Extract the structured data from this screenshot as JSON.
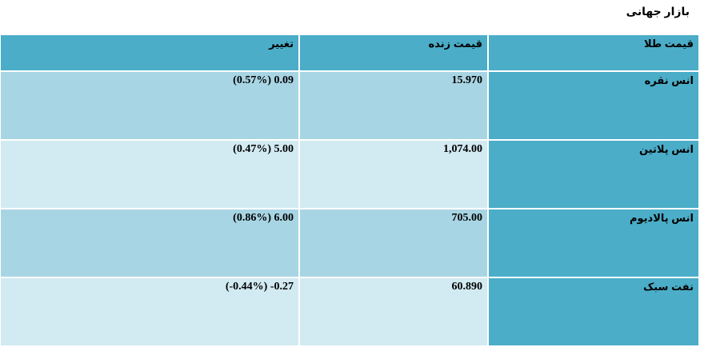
{
  "title": "بازار جهانی",
  "headers": {
    "change": "تغییر",
    "live_price": "قیمت زنده",
    "gold_price": "قیمت طلا"
  },
  "rows": [
    {
      "name": "انس نقره",
      "price": "15.970",
      "change": "(0.57%) 0.09"
    },
    {
      "name": "انس پلاتین",
      "price": "1,074.00",
      "change": "(0.47%) 5.00"
    },
    {
      "name": "انس پالادیوم",
      "price": "705.00",
      "change": "(0.86%) 6.00"
    },
    {
      "name": "نفت سبک",
      "price": "60.890",
      "change": "(-0.44%) -0.27"
    }
  ],
  "colors": {
    "header": "#4badc8",
    "row_odd": "#a8d5e4",
    "row_even": "#d2eaf2"
  }
}
